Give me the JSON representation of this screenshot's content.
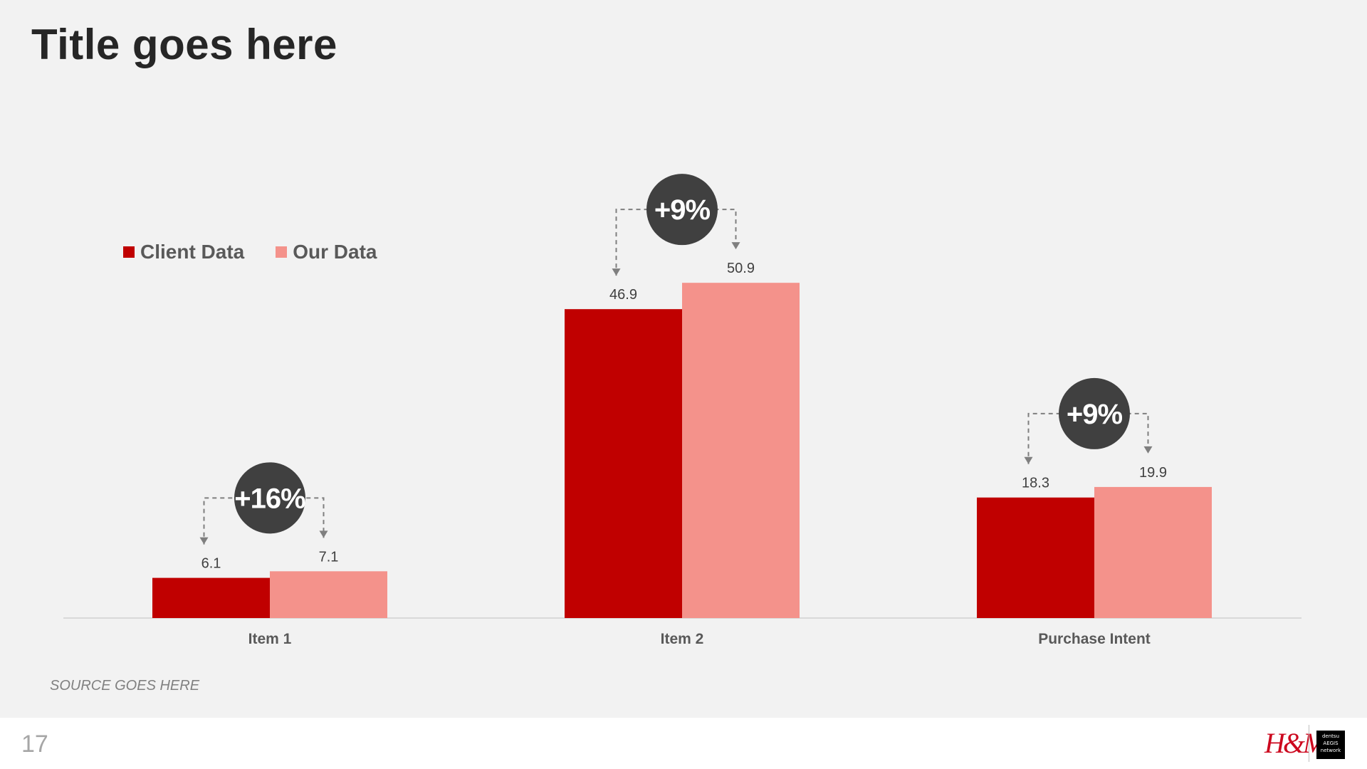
{
  "title": "Title goes here",
  "source": "SOURCE GOES HERE",
  "page_number": "17",
  "logos": {
    "brand": "H&M",
    "agency_lines": [
      "dentsu",
      "AEGIS",
      "network"
    ]
  },
  "colors": {
    "client": "#c00000",
    "ours": "#f4928b",
    "badge": "#404040",
    "axis": "#d9d9d9"
  },
  "chart_data": {
    "type": "bar",
    "categories": [
      "Item 1",
      "Item 2",
      "Purchase Intent"
    ],
    "series": [
      {
        "name": "Client Data",
        "values": [
          6.1,
          46.9,
          18.3
        ]
      },
      {
        "name": "Our Data",
        "values": [
          7.1,
          50.9,
          19.9
        ]
      }
    ],
    "data_labels": [
      [
        "6.1",
        "46.9",
        "18.3"
      ],
      [
        "7.1",
        "50.9",
        "19.9"
      ]
    ],
    "annotations": [
      "+16%",
      "+9%",
      "+9%"
    ],
    "legend": "top-left",
    "grid": false
  }
}
